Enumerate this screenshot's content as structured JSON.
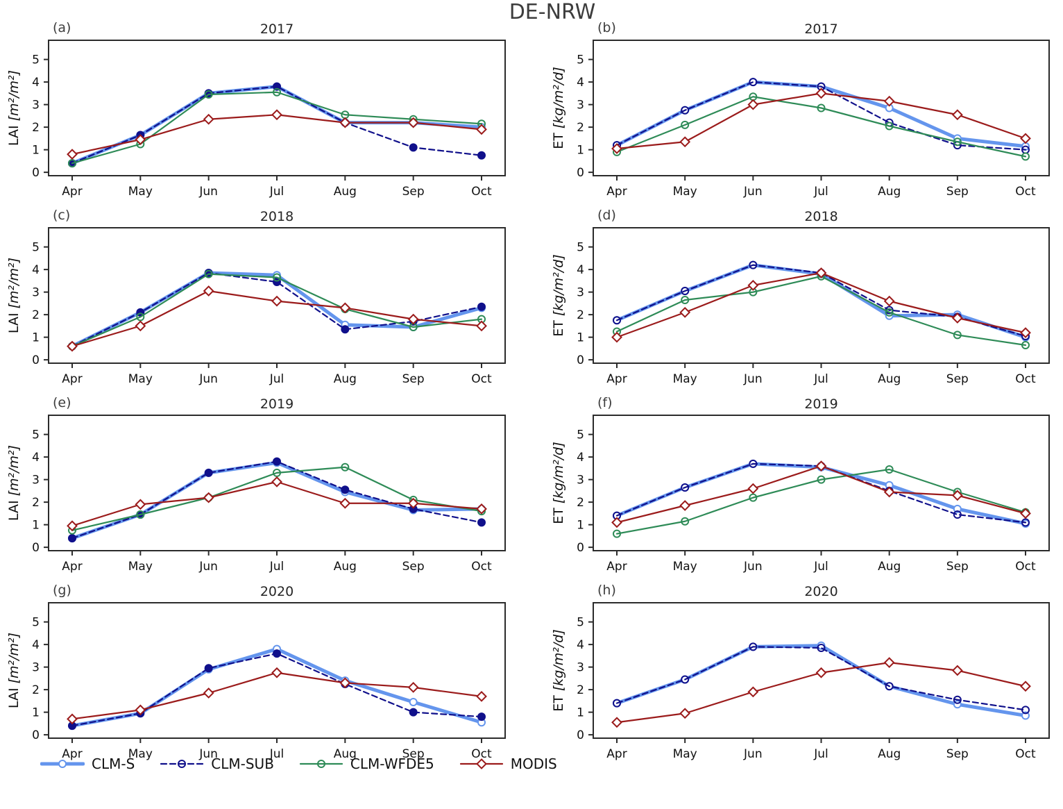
{
  "figure": {
    "title": "DE-NRW",
    "background": "#ffffff",
    "axis_color": "#2b2b2b",
    "text_color": "#111111",
    "title_color": "#3d3d3d"
  },
  "legend": {
    "position": "bottom-left",
    "entries": [
      {
        "name": "CLM-S",
        "color": "#6495ED",
        "line": "solid-thick",
        "marker": "circle-open"
      },
      {
        "name": "CLM-SUB",
        "color": "#10108B",
        "line": "dashed",
        "marker": "circle-open"
      },
      {
        "name": "CLM-WFDE5",
        "color": "#2E8B57",
        "line": "solid",
        "marker": "circle-open"
      },
      {
        "name": "MODIS",
        "color": "#9B1B1B",
        "line": "solid",
        "marker": "diamond-open"
      }
    ]
  },
  "chart_data": [
    {
      "id": "a",
      "label": "(a)",
      "title": "2017",
      "type": "line",
      "ylabel": "LAI [m²/m²]",
      "x": [
        "Apr",
        "May",
        "Jun",
        "Jul",
        "Aug",
        "Sep",
        "Oct"
      ],
      "ylim": [
        -0.15,
        5.85
      ],
      "yticks": [
        0,
        1,
        2,
        3,
        4,
        5
      ],
      "grid": false,
      "series": [
        {
          "name": "CLM-S",
          "marker_fill": "open",
          "values": [
            0.4,
            1.65,
            3.5,
            3.8,
            2.2,
            2.2,
            2.0
          ]
        },
        {
          "name": "CLM-SUB",
          "marker_fill": "filled",
          "values": [
            0.4,
            1.65,
            3.5,
            3.8,
            2.2,
            1.1,
            0.75
          ]
        },
        {
          "name": "CLM-WFDE5",
          "marker_fill": "open",
          "values": [
            0.4,
            1.25,
            3.45,
            3.55,
            2.55,
            2.35,
            2.15
          ]
        },
        {
          "name": "MODIS",
          "marker_fill": "open",
          "values": [
            0.8,
            1.45,
            2.35,
            2.55,
            2.2,
            2.2,
            1.9
          ]
        }
      ]
    },
    {
      "id": "b",
      "label": "(b)",
      "title": "2017",
      "type": "line",
      "ylabel": "ET [kg/m²/d]",
      "x": [
        "Apr",
        "May",
        "Jun",
        "Jul",
        "Aug",
        "Sep",
        "Oct"
      ],
      "ylim": [
        -0.15,
        5.85
      ],
      "yticks": [
        0,
        1,
        2,
        3,
        4,
        5
      ],
      "grid": false,
      "series": [
        {
          "name": "CLM-S",
          "marker_fill": "open",
          "values": [
            1.2,
            2.75,
            4.0,
            3.8,
            2.85,
            1.5,
            1.15
          ]
        },
        {
          "name": "CLM-SUB",
          "marker_fill": "open",
          "values": [
            1.2,
            2.75,
            4.0,
            3.8,
            2.2,
            1.2,
            1.0
          ]
        },
        {
          "name": "CLM-WFDE5",
          "marker_fill": "open",
          "values": [
            0.9,
            2.1,
            3.35,
            2.85,
            2.05,
            1.35,
            0.7
          ]
        },
        {
          "name": "MODIS",
          "marker_fill": "open",
          "values": [
            1.05,
            1.35,
            3.0,
            3.5,
            3.15,
            2.55,
            1.5
          ]
        }
      ]
    },
    {
      "id": "c",
      "label": "(c)",
      "title": "2018",
      "type": "line",
      "ylabel": "LAI [m²/m²]",
      "x": [
        "Apr",
        "May",
        "Jun",
        "Jul",
        "Aug",
        "Sep",
        "Oct"
      ],
      "ylim": [
        -0.15,
        5.85
      ],
      "yticks": [
        0,
        1,
        2,
        3,
        4,
        5
      ],
      "grid": false,
      "series": [
        {
          "name": "CLM-S",
          "marker_fill": "open",
          "values": [
            0.6,
            2.1,
            3.85,
            3.75,
            1.55,
            1.45,
            2.3
          ]
        },
        {
          "name": "CLM-SUB",
          "marker_fill": "filled",
          "values": [
            0.6,
            2.1,
            3.85,
            3.45,
            1.35,
            1.7,
            2.35
          ]
        },
        {
          "name": "CLM-WFDE5",
          "marker_fill": "open",
          "values": [
            0.6,
            1.9,
            3.8,
            3.65,
            2.25,
            1.45,
            1.8
          ]
        },
        {
          "name": "MODIS",
          "marker_fill": "open",
          "values": [
            0.6,
            1.5,
            3.05,
            2.6,
            2.3,
            1.8,
            1.5
          ]
        }
      ]
    },
    {
      "id": "d",
      "label": "(d)",
      "title": "2018",
      "type": "line",
      "ylabel": "ET [kg/m²/d]",
      "x": [
        "Apr",
        "May",
        "Jun",
        "Jul",
        "Aug",
        "Sep",
        "Oct"
      ],
      "ylim": [
        -0.15,
        5.85
      ],
      "yticks": [
        0,
        1,
        2,
        3,
        4,
        5
      ],
      "grid": false,
      "series": [
        {
          "name": "CLM-S",
          "marker_fill": "open",
          "values": [
            1.75,
            3.05,
            4.2,
            3.8,
            1.95,
            2.0,
            1.0
          ]
        },
        {
          "name": "CLM-SUB",
          "marker_fill": "open",
          "values": [
            1.75,
            3.05,
            4.2,
            3.85,
            2.2,
            1.9,
            1.05
          ]
        },
        {
          "name": "CLM-WFDE5",
          "marker_fill": "open",
          "values": [
            1.25,
            2.65,
            3.0,
            3.7,
            2.1,
            1.1,
            0.65
          ]
        },
        {
          "name": "MODIS",
          "marker_fill": "open",
          "values": [
            1.0,
            2.1,
            3.3,
            3.85,
            2.6,
            1.85,
            1.2
          ]
        }
      ]
    },
    {
      "id": "e",
      "label": "(e)",
      "title": "2019",
      "type": "line",
      "ylabel": "LAI [m²/m²]",
      "x": [
        "Apr",
        "May",
        "Jun",
        "Jul",
        "Aug",
        "Sep",
        "Oct"
      ],
      "ylim": [
        -0.15,
        5.85
      ],
      "yticks": [
        0,
        1,
        2,
        3,
        4,
        5
      ],
      "grid": false,
      "series": [
        {
          "name": "CLM-S",
          "marker_fill": "open",
          "values": [
            0.4,
            1.45,
            3.3,
            3.75,
            2.45,
            1.65,
            1.7
          ]
        },
        {
          "name": "CLM-SUB",
          "marker_fill": "filled",
          "values": [
            0.4,
            1.45,
            3.3,
            3.8,
            2.55,
            1.7,
            1.1
          ]
        },
        {
          "name": "CLM-WFDE5",
          "marker_fill": "open",
          "values": [
            0.75,
            1.45,
            2.2,
            3.3,
            3.55,
            2.1,
            1.6
          ]
        },
        {
          "name": "MODIS",
          "marker_fill": "open",
          "values": [
            0.95,
            1.9,
            2.2,
            2.9,
            1.95,
            1.95,
            1.7
          ]
        }
      ]
    },
    {
      "id": "f",
      "label": "(f)",
      "title": "2019",
      "type": "line",
      "ylabel": "ET [kg/m²/d]",
      "x": [
        "Apr",
        "May",
        "Jun",
        "Jul",
        "Aug",
        "Sep",
        "Oct"
      ],
      "ylim": [
        -0.15,
        5.85
      ],
      "yticks": [
        0,
        1,
        2,
        3,
        4,
        5
      ],
      "grid": false,
      "series": [
        {
          "name": "CLM-S",
          "marker_fill": "open",
          "values": [
            1.4,
            2.65,
            3.7,
            3.55,
            2.75,
            1.7,
            1.05
          ]
        },
        {
          "name": "CLM-SUB",
          "marker_fill": "open",
          "values": [
            1.4,
            2.65,
            3.7,
            3.6,
            2.5,
            1.45,
            1.1
          ]
        },
        {
          "name": "CLM-WFDE5",
          "marker_fill": "open",
          "values": [
            0.6,
            1.15,
            2.2,
            3.0,
            3.45,
            2.45,
            1.55
          ]
        },
        {
          "name": "MODIS",
          "marker_fill": "open",
          "values": [
            1.1,
            1.85,
            2.6,
            3.6,
            2.45,
            2.3,
            1.5
          ]
        }
      ]
    },
    {
      "id": "g",
      "label": "(g)",
      "title": "2020",
      "type": "line",
      "ylabel": "LAI [m²/m²]",
      "x": [
        "Apr",
        "May",
        "Jun",
        "Jul",
        "Aug",
        "Sep",
        "Oct"
      ],
      "ylim": [
        -0.15,
        5.85
      ],
      "yticks": [
        0,
        1,
        2,
        3,
        4,
        5
      ],
      "grid": false,
      "series": [
        {
          "name": "CLM-S",
          "marker_fill": "open",
          "values": [
            0.4,
            0.95,
            2.9,
            3.8,
            2.4,
            1.45,
            0.55
          ]
        },
        {
          "name": "CLM-SUB",
          "marker_fill": "filled",
          "values": [
            0.4,
            0.95,
            2.95,
            3.6,
            2.25,
            1.0,
            0.8
          ]
        },
        {
          "name": "MODIS",
          "marker_fill": "open",
          "values": [
            0.7,
            1.1,
            1.85,
            2.75,
            2.3,
            2.1,
            1.7
          ]
        }
      ]
    },
    {
      "id": "h",
      "label": "(h)",
      "title": "2020",
      "type": "line",
      "ylabel": "ET [kg/m²/d]",
      "x": [
        "Apr",
        "May",
        "Jun",
        "Jul",
        "Aug",
        "Sep",
        "Oct"
      ],
      "ylim": [
        -0.15,
        5.85
      ],
      "yticks": [
        0,
        1,
        2,
        3,
        4,
        5
      ],
      "grid": false,
      "series": [
        {
          "name": "CLM-S",
          "marker_fill": "open",
          "values": [
            1.4,
            2.45,
            3.9,
            3.95,
            2.15,
            1.35,
            0.85
          ]
        },
        {
          "name": "CLM-SUB",
          "marker_fill": "open",
          "values": [
            1.4,
            2.45,
            3.9,
            3.85,
            2.15,
            1.55,
            1.1
          ]
        },
        {
          "name": "MODIS",
          "marker_fill": "open",
          "values": [
            0.55,
            0.95,
            1.9,
            2.75,
            3.2,
            2.85,
            2.15
          ]
        }
      ]
    }
  ]
}
